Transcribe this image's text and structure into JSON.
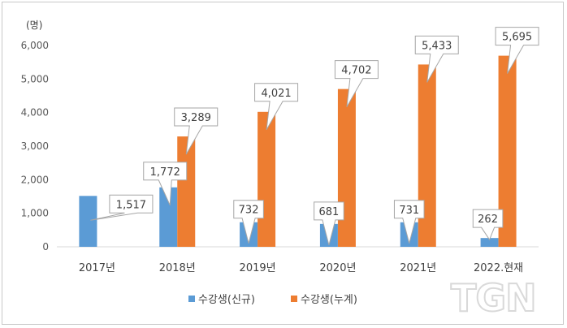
{
  "chart_data": {
    "type": "bar",
    "unit_label": "(명)",
    "categories": [
      "2017년",
      "2018년",
      "2019년",
      "2020년",
      "2021년",
      "2022.현재"
    ],
    "series": [
      {
        "name": "수강생(신규)",
        "color": "#5b9bd5",
        "values": [
          1517,
          1772,
          732,
          681,
          731,
          262
        ],
        "labels": [
          "1,517",
          "1,772",
          "732",
          "681",
          "731",
          "262"
        ]
      },
      {
        "name": "수강생(누계)",
        "color": "#ed7d31",
        "values": [
          null,
          3289,
          4021,
          4702,
          5433,
          5695
        ],
        "labels": [
          "",
          "3,289",
          "4,021",
          "4,702",
          "5,433",
          "5,695"
        ]
      }
    ],
    "y_ticks": [
      0,
      1000,
      2000,
      3000,
      4000,
      5000,
      6000
    ],
    "y_tick_labels": [
      "0",
      "1,000",
      "2,000",
      "3,000",
      "4,000",
      "5,000",
      "6,000"
    ],
    "ylim": [
      0,
      6000
    ],
    "grid": false,
    "legend_position": "bottom"
  },
  "watermark": "TGN"
}
